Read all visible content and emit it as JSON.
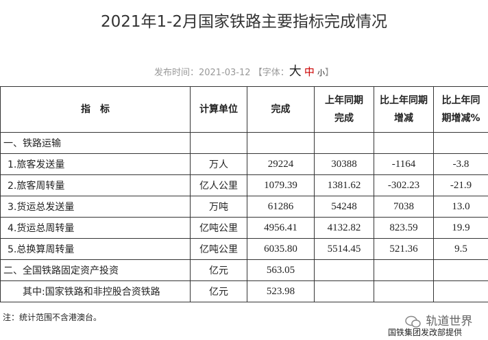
{
  "header": {
    "title": "2021年1-2月国家铁路主要指标完成情况",
    "publish": "发布时间：2021-03-12",
    "font_open": "【字体：",
    "font_large": "大",
    "font_medium": "中",
    "font_small": "小",
    "font_close": "】"
  },
  "table": {
    "columns": [
      [
        "指　标"
      ],
      [
        "计算单位"
      ],
      [
        "完成"
      ],
      [
        "上年同期",
        "完成"
      ],
      [
        "比上年同期",
        "增减"
      ],
      [
        "比上年同",
        "期增减%"
      ]
    ],
    "rows": [
      [
        "一、铁路运输"
      ],
      [
        "1.旅客发送量",
        "万人",
        "29224",
        "30388",
        "-1164",
        "-3.8"
      ],
      [
        "2.旅客周转量",
        "亿人公里",
        "1079.39",
        "1381.62",
        "-302.23",
        "-21.9"
      ],
      [
        "3.货运总发送量",
        "万吨",
        "61286",
        "54248",
        "7038",
        "13.0"
      ],
      [
        "4.货运总周转量",
        "亿吨公里",
        "4956.41",
        "4132.82",
        "823.59",
        "19.9"
      ],
      [
        "5.总换算周转量",
        "亿吨公里",
        "6035.80",
        "5514.45",
        "521.36",
        "9.5"
      ],
      [
        "二、全国铁路固定资产投资",
        "亿元",
        "563.05"
      ],
      [
        "其中:国家铁路和非控股合资铁路",
        "亿元",
        "523.98"
      ]
    ]
  },
  "note": "注：统计范围不含港澳台。",
  "watermark": "轨道世界",
  "source": "国铁集团发改部提供"
}
